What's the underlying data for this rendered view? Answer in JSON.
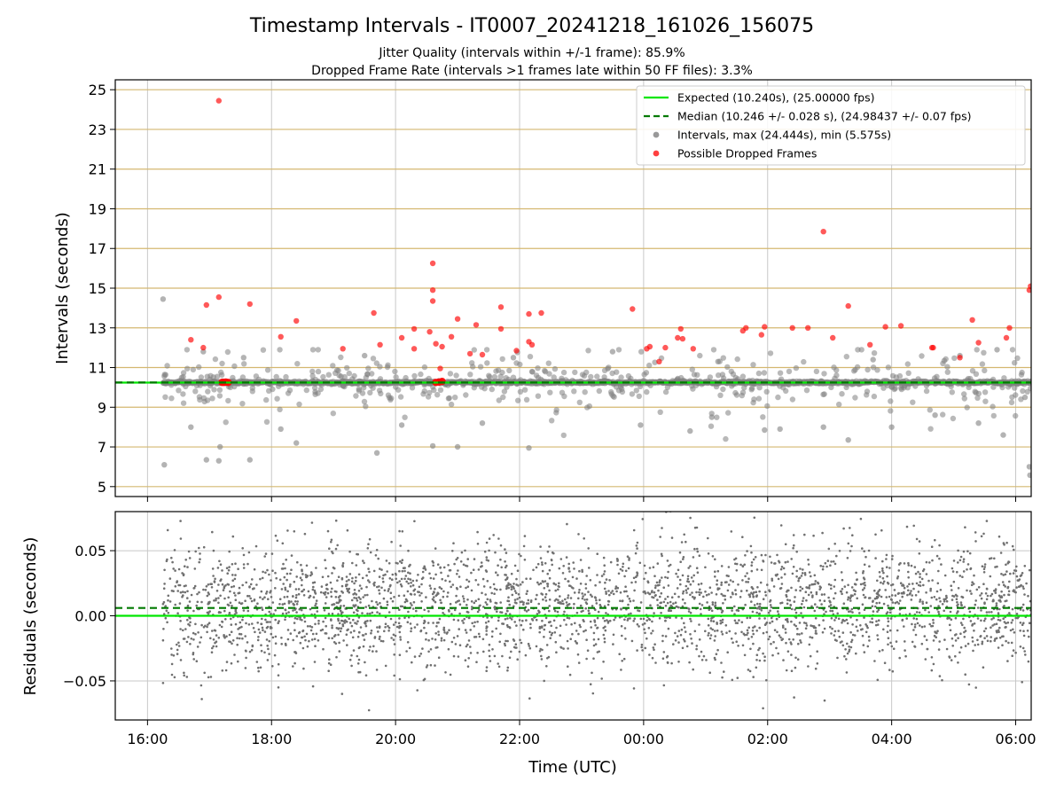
{
  "chart_data": {
    "type": "scatter",
    "title": "Timestamp Intervals - IT0007_20241218_161026_156075",
    "subtitle_lines": [
      "Jitter Quality (intervals within +/-1 frame): 85.9%",
      "Dropped Frame Rate (intervals >1 frames late within 50 FF files): 3.3%"
    ],
    "xlabel": "Time (UTC)",
    "x_tick_labels": [
      "16:00",
      "18:00",
      "20:00",
      "22:00",
      "00:00",
      "02:00",
      "04:00",
      "06:00"
    ],
    "x_range_hours": [
      15.48,
      30.25
    ],
    "x_data_start_hours": 16.25,
    "x_data_end_hours": 30.25,
    "top_panel": {
      "ylabel": "Intervals (seconds)",
      "ylim": [
        4.5,
        25.5
      ],
      "y_ticks": [
        5,
        7,
        9,
        11,
        13,
        15,
        17,
        19,
        21,
        23,
        25
      ],
      "grid_color_y": "#d4b870",
      "grid_color_x": "#c8c8c8",
      "expected_line": {
        "value": 10.24,
        "color": "#00e600"
      },
      "median_line": {
        "value": 10.246,
        "color": "#007a00"
      },
      "interval_color": "#808080",
      "dropped_color": "#ff0000",
      "max_interval": 24.444,
      "min_interval": 5.575,
      "outlier_intervals": [
        {
          "t": 16.25,
          "v": 14.45
        },
        {
          "t": 16.27,
          "v": 6.1
        },
        {
          "t": 16.95,
          "v": 6.35
        },
        {
          "t": 17.15,
          "v": 6.3
        },
        {
          "t": 17.17,
          "v": 7.0
        },
        {
          "t": 17.65,
          "v": 6.35
        },
        {
          "t": 18.4,
          "v": 7.2
        },
        {
          "t": 19.7,
          "v": 6.7
        },
        {
          "t": 20.6,
          "v": 7.05
        },
        {
          "t": 21.0,
          "v": 7.0
        },
        {
          "t": 22.15,
          "v": 6.95
        },
        {
          "t": 17.55,
          "v": 11.5
        },
        {
          "t": 16.9,
          "v": 11.8
        },
        {
          "t": 19.5,
          "v": 11.6
        },
        {
          "t": 21.9,
          "v": 11.5
        },
        {
          "t": 23.5,
          "v": 11.8
        },
        {
          "t": 25.2,
          "v": 11.3
        },
        {
          "t": 27.7,
          "v": 11.4
        },
        {
          "t": 29.1,
          "v": 11.6
        },
        {
          "t": 29.7,
          "v": 11.9
        },
        {
          "t": 30.15,
          "v": 9.5
        },
        {
          "t": 30.22,
          "v": 6.0
        },
        {
          "t": 30.23,
          "v": 5.575
        },
        {
          "t": 29.8,
          "v": 7.6
        },
        {
          "t": 28.0,
          "v": 8.0
        },
        {
          "t": 27.3,
          "v": 7.35
        },
        {
          "t": 26.9,
          "v": 8.0
        },
        {
          "t": 26.2,
          "v": 7.9
        },
        {
          "t": 25.95,
          "v": 7.85
        },
        {
          "t": 24.75,
          "v": 7.8
        },
        {
          "t": 23.95,
          "v": 8.1
        },
        {
          "t": 16.7,
          "v": 8.0
        },
        {
          "t": 18.15,
          "v": 7.9
        },
        {
          "t": 20.1,
          "v": 8.1
        },
        {
          "t": 21.4,
          "v": 8.2
        },
        {
          "t": 28.7,
          "v": 8.6
        },
        {
          "t": 29.4,
          "v": 8.2
        },
        {
          "t": 25.1,
          "v": 8.5
        }
      ],
      "dropped_frames": [
        {
          "t": 17.15,
          "v": 24.444
        },
        {
          "t": 26.9,
          "v": 17.85
        },
        {
          "t": 20.6,
          "v": 16.25
        },
        {
          "t": 30.24,
          "v": 15.1
        },
        {
          "t": 30.22,
          "v": 14.9
        },
        {
          "t": 20.6,
          "v": 14.9
        },
        {
          "t": 20.6,
          "v": 14.35
        },
        {
          "t": 17.15,
          "v": 14.55
        },
        {
          "t": 16.95,
          "v": 14.15
        },
        {
          "t": 17.65,
          "v": 14.2
        },
        {
          "t": 21.7,
          "v": 14.05
        },
        {
          "t": 27.3,
          "v": 14.1
        },
        {
          "t": 23.82,
          "v": 13.95
        },
        {
          "t": 19.65,
          "v": 13.75
        },
        {
          "t": 22.15,
          "v": 13.7
        },
        {
          "t": 22.35,
          "v": 13.75
        },
        {
          "t": 18.4,
          "v": 13.35
        },
        {
          "t": 21.3,
          "v": 13.15
        },
        {
          "t": 29.3,
          "v": 13.4
        },
        {
          "t": 29.9,
          "v": 13.0
        },
        {
          "t": 26.65,
          "v": 13.0
        },
        {
          "t": 26.4,
          "v": 13.0
        },
        {
          "t": 27.9,
          "v": 13.05
        },
        {
          "t": 28.15,
          "v": 13.1
        },
        {
          "t": 25.6,
          "v": 12.85
        },
        {
          "t": 25.65,
          "v": 13.0
        },
        {
          "t": 24.6,
          "v": 12.95
        },
        {
          "t": 20.3,
          "v": 12.95
        },
        {
          "t": 21.7,
          "v": 12.95
        },
        {
          "t": 20.55,
          "v": 12.8
        },
        {
          "t": 21.0,
          "v": 13.45
        },
        {
          "t": 16.7,
          "v": 12.4
        },
        {
          "t": 20.1,
          "v": 12.5
        },
        {
          "t": 20.9,
          "v": 12.55
        },
        {
          "t": 18.15,
          "v": 12.55
        },
        {
          "t": 24.55,
          "v": 12.5
        },
        {
          "t": 27.05,
          "v": 12.5
        },
        {
          "t": 29.85,
          "v": 12.5
        },
        {
          "t": 22.15,
          "v": 12.3
        },
        {
          "t": 22.2,
          "v": 12.15
        },
        {
          "t": 20.65,
          "v": 12.2
        },
        {
          "t": 20.75,
          "v": 12.05
        },
        {
          "t": 19.75,
          "v": 12.15
        },
        {
          "t": 20.3,
          "v": 11.95
        },
        {
          "t": 19.15,
          "v": 11.95
        },
        {
          "t": 16.9,
          "v": 12.0
        },
        {
          "t": 24.35,
          "v": 12.0
        },
        {
          "t": 24.1,
          "v": 12.05
        },
        {
          "t": 24.05,
          "v": 11.95
        },
        {
          "t": 24.8,
          "v": 11.95
        },
        {
          "t": 27.65,
          "v": 12.15
        },
        {
          "t": 28.65,
          "v": 12.0
        },
        {
          "t": 28.67,
          "v": 12.0
        },
        {
          "t": 29.4,
          "v": 12.25
        },
        {
          "t": 21.95,
          "v": 11.85
        },
        {
          "t": 21.2,
          "v": 11.7
        },
        {
          "t": 21.4,
          "v": 11.65
        },
        {
          "t": 24.25,
          "v": 11.3
        },
        {
          "t": 29.1,
          "v": 11.5
        },
        {
          "t": 20.72,
          "v": 10.95
        },
        {
          "t": 25.95,
          "v": 13.05
        },
        {
          "t": 25.9,
          "v": 12.65
        },
        {
          "t": 24.63,
          "v": 12.45
        }
      ],
      "dropped_cluster_baseline": [
        {
          "t": 17.2,
          "v": 10.25
        },
        {
          "t": 17.23,
          "v": 10.25
        },
        {
          "t": 17.26,
          "v": 10.27
        },
        {
          "t": 17.3,
          "v": 10.25
        },
        {
          "t": 20.65,
          "v": 10.25
        },
        {
          "t": 20.7,
          "v": 10.27
        },
        {
          "t": 20.75,
          "v": 10.3
        }
      ]
    },
    "bottom_panel": {
      "ylabel": "Residuals (seconds)",
      "ylim": [
        -0.08,
        0.08
      ],
      "y_ticks": [
        0.05,
        0.0,
        -0.05
      ],
      "y_tick_labels": [
        "0.05",
        "0.00",
        "−0.05"
      ],
      "expected_line": {
        "value": 0.0,
        "color": "#00e600"
      },
      "median_line": {
        "value": 0.006,
        "color": "#007a00"
      },
      "residual_color": "#707070",
      "residual_sigma": 0.028
    },
    "legend": {
      "placement": "top-right",
      "entries": [
        {
          "label": "Expected (10.240s), (25.00000 fps)",
          "kind": "line",
          "color": "#00e600"
        },
        {
          "label": "Median (10.246 +/- 0.028 s), (24.98437 +/- 0.07 fps)",
          "kind": "dashed",
          "color": "#007a00"
        },
        {
          "label": "Intervals, max (24.444s), min (5.575s)",
          "kind": "dot",
          "color": "#999999"
        },
        {
          "label": "Possible Dropped Frames",
          "kind": "dot",
          "color": "#ff4040"
        }
      ]
    }
  }
}
